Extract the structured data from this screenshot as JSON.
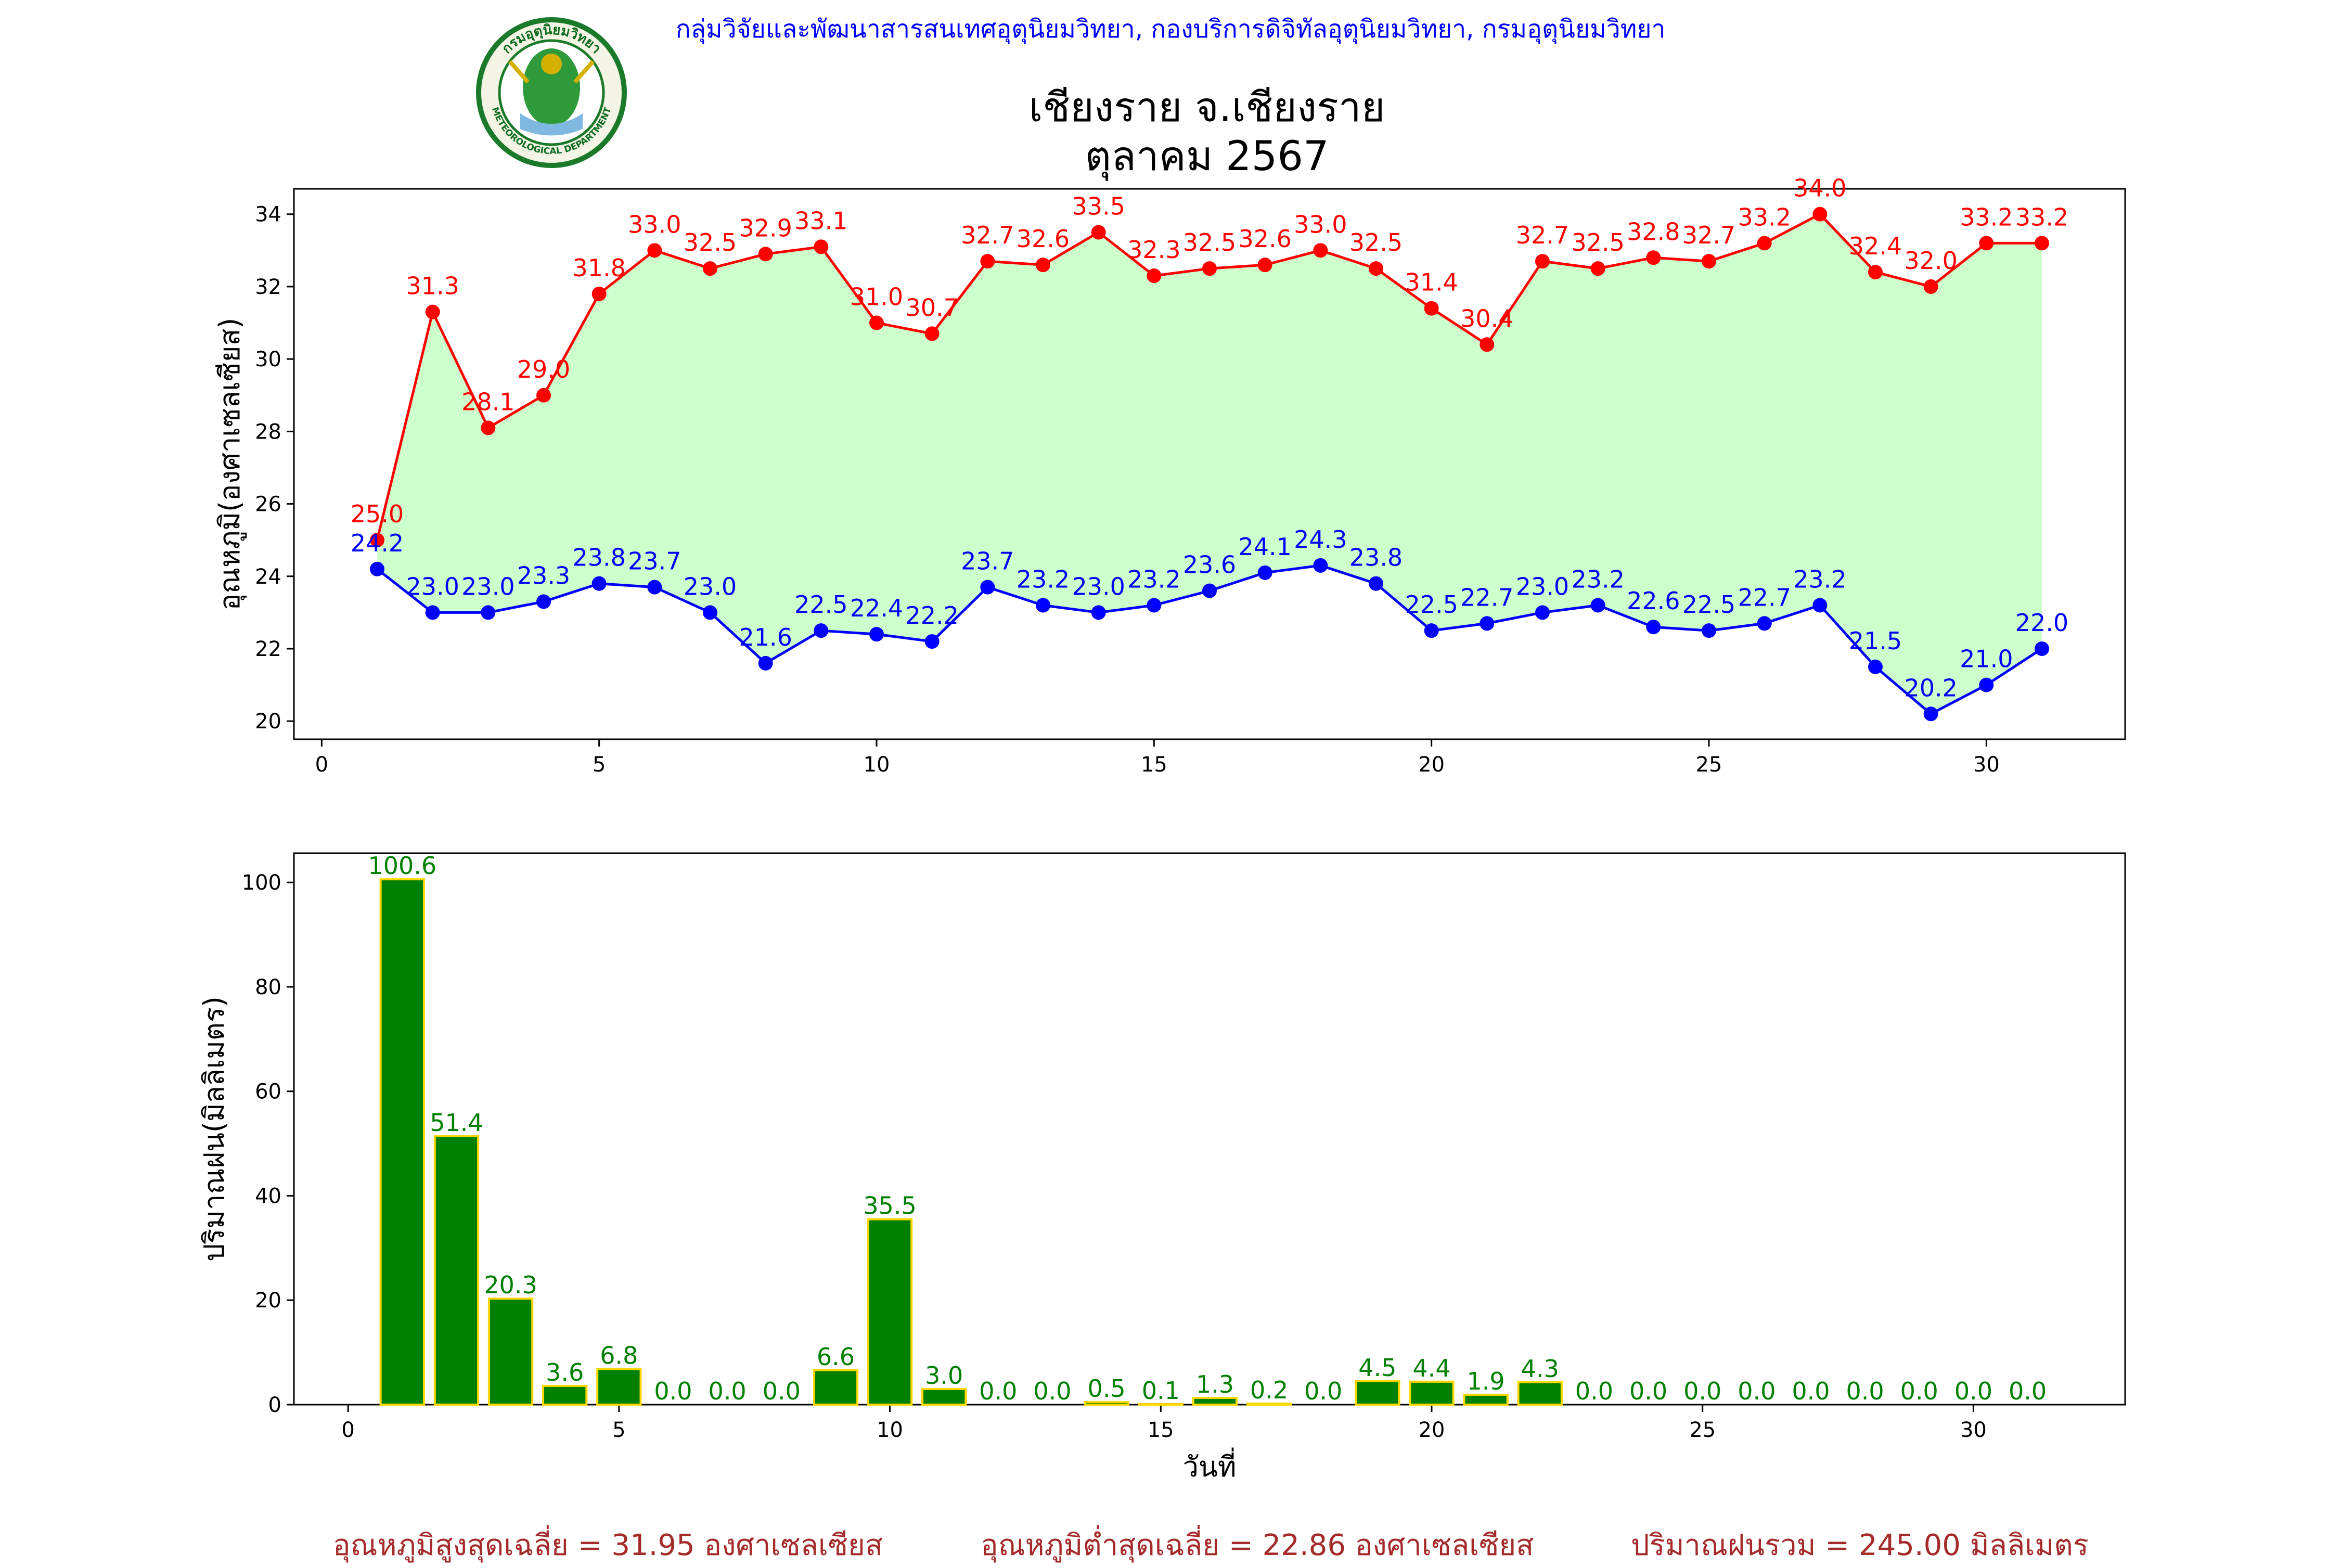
{
  "header": {
    "organization": "กลุ่มวิจัยและพัฒนาสารสนเทศอุตุนิยมวิทยา, กองบริการดิจิทัลอุตุนิยมวิทยา, กรมอุตุนิยมวิทยา",
    "station": "เชียงราย จ.เชียงราย",
    "period": "ตุลาคม 2567",
    "logo_text_top": "กรมอุตุนิยมวิทยา",
    "logo_text_bottom": "METEOROLOGICAL DEPARTMENT"
  },
  "colors": {
    "max_temp": "#ff0000",
    "min_temp": "#0000ff",
    "temp_fill": "#ccffcc",
    "rain_bar": "#008000",
    "rain_edge": "#ffd700",
    "header_text": "#0000ff",
    "footer_text": "#a52a2a"
  },
  "chart_data": [
    {
      "type": "line",
      "x": [
        1,
        2,
        3,
        4,
        5,
        6,
        7,
        8,
        9,
        10,
        11,
        12,
        13,
        14,
        15,
        16,
        17,
        18,
        19,
        20,
        21,
        22,
        23,
        24,
        25,
        26,
        27,
        28,
        29,
        30,
        31
      ],
      "xticks": [
        0,
        5,
        10,
        15,
        20,
        25,
        30
      ],
      "xlim": [
        -0.5,
        32.5
      ],
      "yticks": [
        20,
        22,
        24,
        26,
        28,
        30,
        32,
        34
      ],
      "ylim": [
        19.5,
        34.7
      ],
      "ylabel": "อุณหภูมิ(องศาเซลเซียส)",
      "xlabel": "",
      "fill_between": true,
      "series": [
        {
          "key": "max",
          "values": [
            25.0,
            31.3,
            28.1,
            29.0,
            31.8,
            33.0,
            32.5,
            32.9,
            33.1,
            31.0,
            30.7,
            32.7,
            32.6,
            33.5,
            32.3,
            32.5,
            32.6,
            33.0,
            32.5,
            31.4,
            30.4,
            32.7,
            32.5,
            32.8,
            32.7,
            33.2,
            34.0,
            32.4,
            32.0,
            33.2,
            33.2
          ],
          "labels": [
            "25.0",
            "31.3",
            "28.1",
            "29.0",
            "31.8",
            "33.0",
            "32.5",
            "32.9",
            "33.1",
            "31.0",
            "30.7",
            "32.7",
            "32.6",
            "33.5",
            "32.3",
            "32.5",
            "32.6",
            "33.0",
            "32.5",
            "31.4",
            "30.4",
            "32.7",
            "32.5",
            "32.8",
            "32.7",
            "33.2",
            "34.0",
            "32.4",
            "32.0",
            "33.2",
            "33.2"
          ]
        },
        {
          "key": "min",
          "values": [
            24.2,
            23.0,
            23.0,
            23.3,
            23.8,
            23.7,
            23.0,
            21.6,
            22.5,
            22.4,
            22.2,
            23.7,
            23.2,
            23.0,
            23.2,
            23.6,
            24.1,
            24.3,
            23.8,
            22.5,
            22.7,
            23.0,
            23.2,
            22.6,
            22.5,
            22.7,
            23.2,
            21.5,
            20.2,
            21.0,
            22.0
          ],
          "labels": [
            "24.2",
            "23.0",
            "23.0",
            "23.3",
            "23.8",
            "23.7",
            "23.0",
            "21.6",
            "22.5",
            "22.4",
            "22.2",
            "23.7",
            "23.2",
            "23.0",
            "23.2",
            "23.6",
            "24.1",
            "24.3",
            "23.8",
            "22.5",
            "22.7",
            "23.0",
            "23.2",
            "22.6",
            "22.5",
            "22.7",
            "23.2",
            "21.5",
            "20.2",
            "21.0",
            "22.0"
          ]
        }
      ]
    },
    {
      "type": "bar",
      "x": [
        1,
        2,
        3,
        4,
        5,
        6,
        7,
        8,
        9,
        10,
        11,
        12,
        13,
        14,
        15,
        16,
        17,
        18,
        19,
        20,
        21,
        22,
        23,
        24,
        25,
        26,
        27,
        28,
        29,
        30,
        31
      ],
      "values": [
        100.6,
        51.4,
        20.3,
        3.6,
        6.8,
        0.0,
        0.0,
        0.0,
        6.6,
        35.5,
        3.0,
        0.0,
        0.0,
        0.5,
        0.1,
        1.3,
        0.2,
        0.0,
        4.5,
        4.4,
        1.9,
        4.3,
        0.0,
        0.0,
        0.0,
        0.0,
        0.0,
        0.0,
        0.0,
        0.0,
        0.0
      ],
      "labels": [
        "100.6",
        "51.4",
        "20.3",
        "3.6",
        "6.8",
        "0.0",
        "0.0",
        "0.0",
        "6.6",
        "35.5",
        "3.0",
        "0.0",
        "0.0",
        "0.5",
        "0.1",
        "1.3",
        "0.2",
        "0.0",
        "4.5",
        "4.4",
        "1.9",
        "4.3",
        "0.0",
        "0.0",
        "0.0",
        "0.0",
        "0.0",
        "0.0",
        "0.0",
        "0.0",
        "0.0"
      ],
      "xticks": [
        0,
        5,
        10,
        15,
        20,
        25,
        30
      ],
      "xlim": [
        -1,
        32.8
      ],
      "yticks": [
        0,
        20,
        40,
        60,
        80,
        100
      ],
      "ylim": [
        0,
        105.6
      ],
      "ylabel": "ปริมาณฝน(มิลลิเมตร)",
      "xlabel": "วันที่"
    }
  ],
  "footer": {
    "avg_max": "อุณหภูมิสูงสุดเฉลี่ย = 31.95 องศาเซลเซียส",
    "avg_min": "อุณหภูมิต่ำสุดเฉลี่ย = 22.86 องศาเซลเซียส",
    "total_rain": "ปริมาณฝนรวม = 245.00 มิลลิเมตร"
  }
}
